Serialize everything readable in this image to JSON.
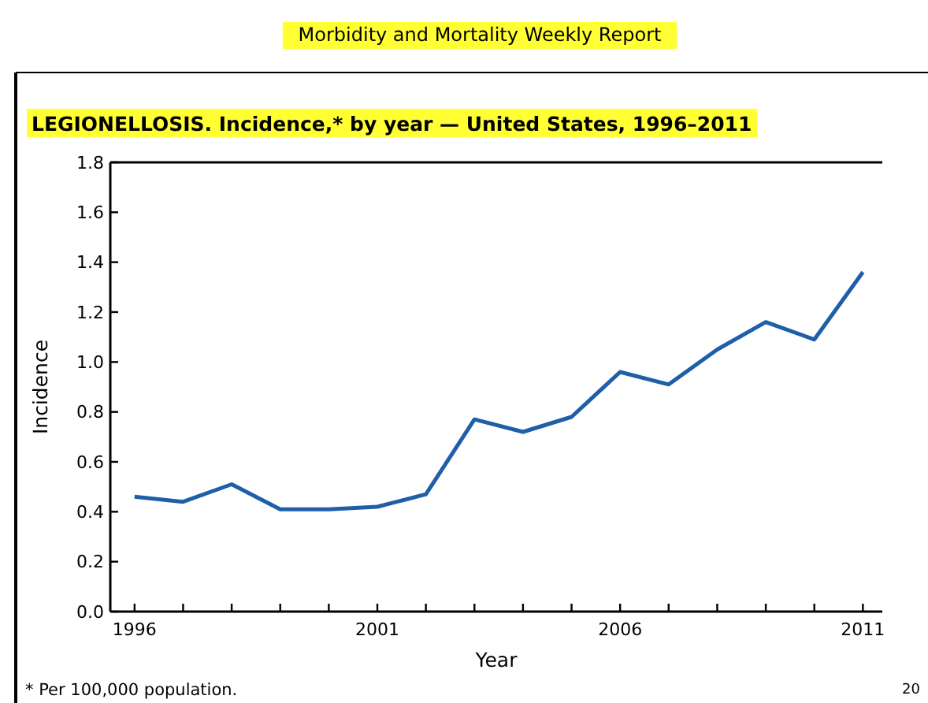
{
  "chart_data": {
    "type": "line",
    "title": "LEGIONELLOSIS. Incidence,* by year — United States, 1996–2011",
    "xlabel": "Year",
    "ylabel": "Incidence",
    "x": [
      1996,
      1997,
      1998,
      1999,
      2000,
      2001,
      2002,
      2003,
      2004,
      2005,
      2006,
      2007,
      2008,
      2009,
      2010,
      2011
    ],
    "series": [
      {
        "color": "#1f5fa8",
        "values": [
          0.46,
          0.44,
          0.51,
          0.41,
          0.41,
          0.42,
          0.47,
          0.77,
          0.72,
          0.78,
          0.96,
          0.91,
          1.05,
          1.16,
          1.09,
          1.36
        ]
      }
    ],
    "xlim": [
      1995.5,
      2011.4
    ],
    "xticks": [
      1996,
      {
        "value": 1997,
        "label": null
      },
      {
        "value": 1998,
        "label": null
      },
      {
        "value": 1999,
        "label": null
      },
      {
        "value": 2000,
        "label": null
      },
      2001,
      {
        "value": 2002,
        "label": null
      },
      {
        "value": 2003,
        "label": null
      },
      {
        "value": 2004,
        "label": null
      },
      {
        "value": 2005,
        "label": null
      },
      2006,
      {
        "value": 2007,
        "label": null
      },
      {
        "value": 2008,
        "label": null
      },
      {
        "value": 2009,
        "label": null
      },
      {
        "value": 2010,
        "label": null
      },
      2011
    ],
    "ylim": [
      0,
      1.8
    ],
    "yticks": [
      {
        "value": 0,
        "label": "0.0"
      },
      {
        "value": 0.2,
        "label": "0.2"
      },
      {
        "value": 0.4,
        "label": "0.4"
      },
      {
        "value": 0.6,
        "label": "0.6"
      },
      {
        "value": 0.8,
        "label": "0.8"
      },
      {
        "value": 1.0,
        "label": "1.0"
      },
      {
        "value": 1.2,
        "label": "1.2"
      },
      {
        "value": 1.4,
        "label": "1.4"
      },
      {
        "value": 1.6,
        "label": "1.6"
      },
      {
        "value": 1.8,
        "label": "1.8"
      }
    ],
    "grid": false,
    "marker": "none",
    "line_style": "solid",
    "annotations": [
      "Morbidity and Mortality Weekly Report",
      "* Per 100,000 population.",
      "20"
    ]
  }
}
